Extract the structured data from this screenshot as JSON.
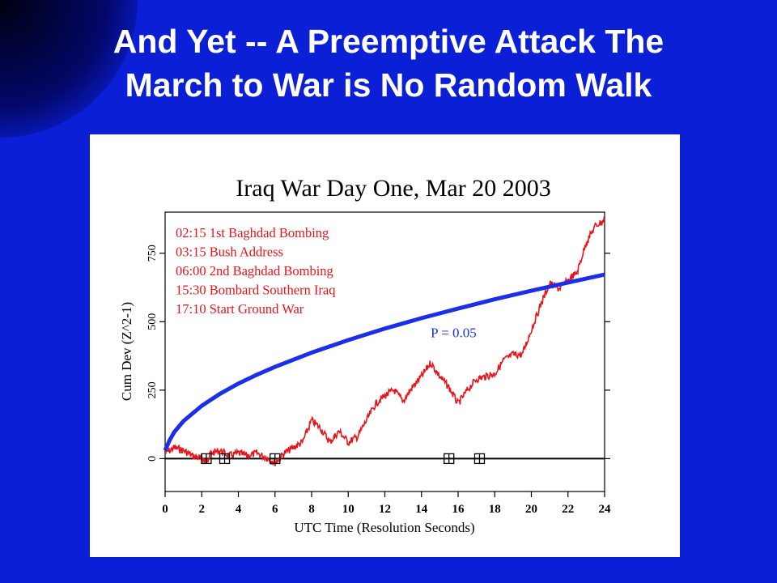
{
  "slide": {
    "title": "And Yet -- A Preemptive Attack        The\nMarch to War is No Random Walk"
  },
  "colors": {
    "background": "#0a1fd6",
    "title_text": "#ffffff",
    "observed_series": "#e8141b",
    "significance_curve": "#1a2fe6",
    "annotation_text": "#e8141b"
  },
  "chart_data": {
    "type": "line",
    "title": "Iraq War Day One, Mar 20 2003",
    "xlabel": "UTC Time (Resolution Seconds)",
    "ylabel": "Cum Dev (Z^2-1)",
    "xlim": [
      0,
      24
    ],
    "ylim": [
      -120,
      900
    ],
    "xticks": [
      "0",
      "2",
      "4",
      "6",
      "8",
      "10",
      "12",
      "14",
      "16",
      "18",
      "20",
      "22",
      "24"
    ],
    "yticks": [
      "0",
      "250",
      "500",
      "750"
    ],
    "events": [
      {
        "label": "02:15 1st Baghdad Bombing",
        "x": 2.25
      },
      {
        "label": "03:15 Bush Address",
        "x": 3.25
      },
      {
        "label": "06:00 2nd Baghdad Bombing",
        "x": 6.0
      },
      {
        "label": "15:30 Bombard Southern Iraq",
        "x": 15.5
      },
      {
        "label": "17:10 Start Ground War",
        "x": 17.17
      }
    ],
    "series": [
      {
        "style": "observed",
        "x": [
          0,
          0.5,
          1,
          1.5,
          2,
          2.25,
          2.5,
          3,
          3.5,
          4,
          4.5,
          5,
          5.5,
          6,
          6.5,
          7,
          7.5,
          8,
          8.5,
          9,
          9.5,
          10,
          10.5,
          11,
          11.5,
          12,
          12.5,
          13,
          13.5,
          14,
          14.5,
          15,
          15.5,
          16,
          16.5,
          17,
          17.5,
          18,
          18.5,
          19,
          19.5,
          20,
          20.5,
          21,
          21.5,
          22,
          22.5,
          23,
          23.5,
          24
        ],
        "values": [
          20,
          40,
          30,
          10,
          0,
          -10,
          20,
          30,
          10,
          20,
          10,
          20,
          5,
          -15,
          20,
          40,
          60,
          140,
          110,
          60,
          100,
          60,
          80,
          140,
          200,
          230,
          250,
          210,
          260,
          300,
          350,
          300,
          260,
          200,
          250,
          290,
          300,
          310,
          360,
          380,
          380,
          470,
          560,
          640,
          620,
          650,
          680,
          790,
          850,
          870
        ]
      },
      {
        "name": "P = 0.05",
        "style": "significance",
        "x": [
          0,
          0.25,
          0.5,
          1,
          2,
          3,
          4,
          5,
          6,
          8,
          10,
          12,
          14,
          16,
          18,
          20,
          22,
          24
        ],
        "values": [
          30,
          68,
          97,
          137,
          193,
          237,
          274,
          306,
          335,
          387,
          433,
          475,
          513,
          548,
          582,
          613,
          643,
          672
        ]
      }
    ],
    "grid": false,
    "legend": "top-left"
  }
}
